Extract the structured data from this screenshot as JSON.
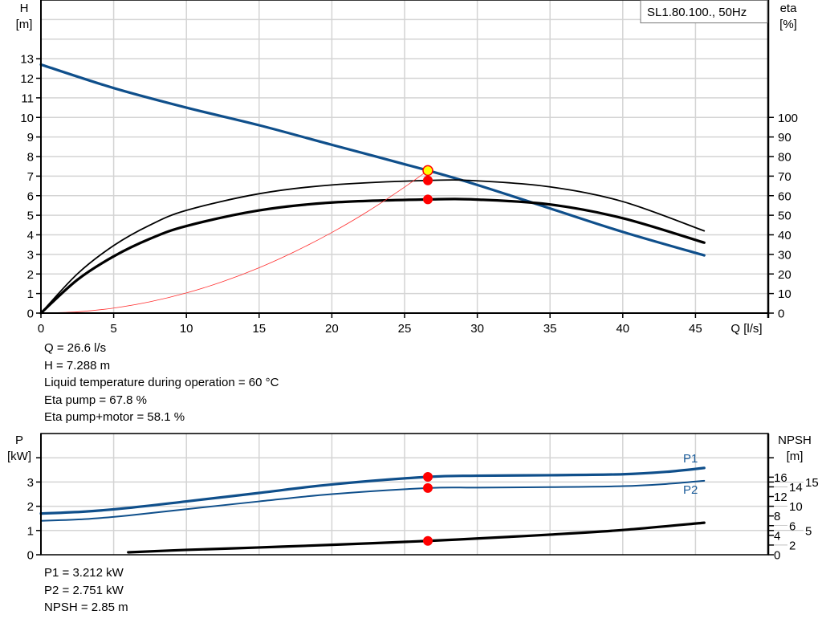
{
  "chart_data": [
    {
      "type": "line",
      "title": "SL1.80.100., 50Hz",
      "xlabel": "Q [l/s]",
      "ylabel": "H [m]",
      "ylabel_name": "H",
      "ylabel_unit": "[m]",
      "y2label_name": "eta",
      "y2label_unit": "[%]",
      "xlim": [
        0,
        50
      ],
      "ylim": [
        0,
        16
      ],
      "y2lim": [
        0,
        160
      ],
      "xticks": [
        0,
        5,
        10,
        15,
        20,
        25,
        30,
        35,
        40,
        45
      ],
      "yticks": [
        0,
        1,
        2,
        3,
        4,
        5,
        6,
        7,
        8,
        9,
        10,
        11,
        12,
        13
      ],
      "y2ticks": [
        0,
        10,
        20,
        30,
        40,
        50,
        60,
        70,
        80,
        90,
        100
      ],
      "grid": true,
      "legend": "top-right",
      "series": [
        {
          "axis": "H",
          "color": "#0f4f8b",
          "width": 3.2,
          "x": [
            0,
            5,
            10,
            15,
            20,
            26.6,
            30,
            35,
            40,
            45.6
          ],
          "y": [
            12.7,
            11.5,
            10.5,
            9.6,
            8.6,
            7.288,
            6.55,
            5.35,
            4.15,
            2.95
          ]
        },
        {
          "axis": "eta",
          "color": "#000000",
          "width": 1.8,
          "x": [
            0,
            2.5,
            5,
            7.5,
            10,
            15,
            20,
            26.6,
            30,
            35,
            40,
            45.6
          ],
          "y": [
            0,
            20,
            34.5,
            45,
            52.5,
            61,
            65.5,
            67.8,
            67.6,
            64.5,
            57,
            42
          ]
        },
        {
          "axis": "eta",
          "color": "#000000",
          "width": 3.2,
          "x": [
            0,
            2.5,
            5,
            7.5,
            10,
            15,
            20,
            26.6,
            30,
            35,
            40,
            45.6
          ],
          "y": [
            0,
            17,
            29,
            38,
            44.5,
            52.5,
            56.5,
            58.1,
            58,
            55.5,
            48.5,
            36
          ]
        },
        {
          "axis": "H",
          "color": "#ff3030",
          "width": 0.8,
          "x": [
            0,
            2.5,
            5,
            7.5,
            10,
            12.5,
            15,
            17.5,
            20,
            22.5,
            25,
            26.6
          ],
          "y": [
            0,
            0.064,
            0.258,
            0.58,
            1.03,
            1.61,
            2.32,
            3.16,
            4.12,
            5.21,
            6.44,
            7.288
          ]
        }
      ],
      "markers": [
        {
          "axis": "H",
          "x": 26.6,
          "y": 7.288,
          "color": "#ffff00",
          "stroke": "#ff0000"
        },
        {
          "axis": "eta",
          "x": 26.6,
          "y": 67.8,
          "color": "#ff0000"
        },
        {
          "axis": "eta",
          "x": 26.6,
          "y": 58.1,
          "color": "#ff0000"
        }
      ]
    },
    {
      "type": "line",
      "ylabel_name": "P",
      "ylabel_unit": "[kW]",
      "y2label_name": "NPSH",
      "y2label_unit": "[m]",
      "xlim": [
        0,
        50
      ],
      "ylim": [
        0,
        5
      ],
      "y2lim": [
        0,
        25
      ],
      "yticks": [
        0,
        1,
        2,
        3
      ],
      "yticks_unlabeled": [
        4
      ],
      "y2ticks": [
        0,
        2,
        4,
        5,
        6,
        8,
        10,
        12,
        14,
        15,
        16
      ],
      "y2ticks_unlabeled": [
        20
      ],
      "grid": true,
      "series": [
        {
          "name": "P1",
          "axis": "P",
          "color": "#0f4f8b",
          "width": 3.2,
          "x": [
            0,
            3,
            6,
            10,
            15,
            20,
            26.6,
            30,
            35,
            40,
            43,
            45.6
          ],
          "y": [
            1.7,
            1.78,
            1.93,
            2.2,
            2.55,
            2.9,
            3.212,
            3.26,
            3.28,
            3.32,
            3.42,
            3.58
          ]
        },
        {
          "name": "P2",
          "axis": "P",
          "color": "#0f4f8b",
          "width": 2,
          "x": [
            0,
            3,
            6,
            10,
            15,
            20,
            26.6,
            30,
            35,
            40,
            43,
            45.6
          ],
          "y": [
            1.4,
            1.47,
            1.62,
            1.88,
            2.2,
            2.5,
            2.751,
            2.77,
            2.79,
            2.83,
            2.92,
            3.05
          ]
        },
        {
          "axis": "NPSH",
          "color": "#000000",
          "width": 3.2,
          "x": [
            6,
            10,
            15,
            20,
            26.6,
            30,
            35,
            40,
            45.6
          ],
          "y": [
            0.5,
            1.0,
            1.5,
            2.05,
            2.85,
            3.35,
            4.15,
            5.1,
            6.6
          ]
        }
      ],
      "markers": [
        {
          "axis": "P",
          "x": 26.6,
          "y": 3.212,
          "color": "#ff0000"
        },
        {
          "axis": "P",
          "x": 26.6,
          "y": 2.751,
          "color": "#ff0000"
        },
        {
          "axis": "NPSH",
          "x": 26.6,
          "y": 2.85,
          "color": "#ff0000"
        }
      ]
    }
  ],
  "duty_point": {
    "lines": [
      "Q = 26.6 l/s",
      "H = 7.288 m",
      "Liquid temperature during operation = 60 °C",
      "Eta pump = 67.8 %",
      "Eta pump+motor = 58.1 %"
    ]
  },
  "power_point": {
    "lines": [
      "P1 = 3.212 kW",
      "P2 = 2.751 kW",
      "NPSH = 2.85 m"
    ]
  }
}
